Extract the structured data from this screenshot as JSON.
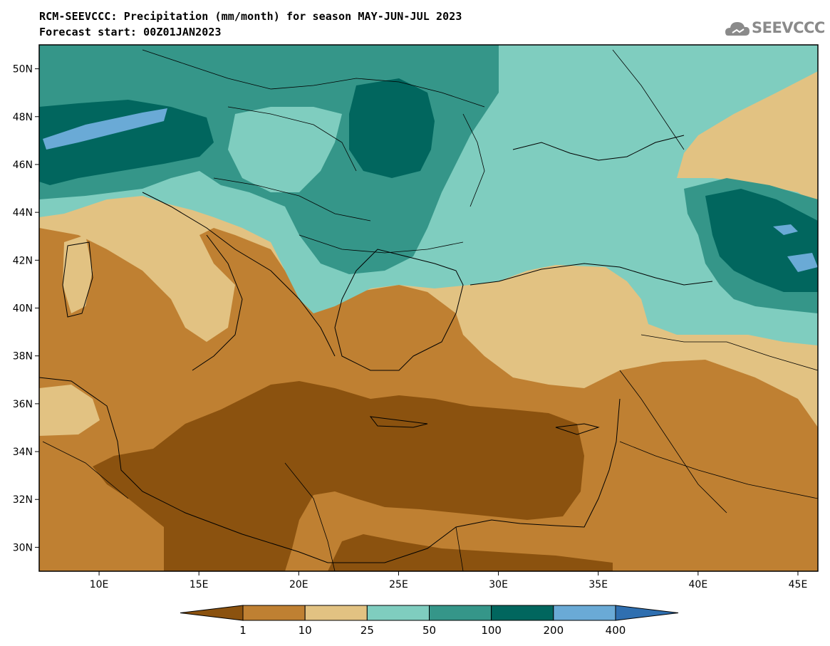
{
  "title": "RCM-SEEVCCC: Precipitation (mm/month) for season MAY-JUN-JUL 2023",
  "subtitle": "Forecast start: 00Z01JAN2023",
  "logo_text": "SEEVCCC",
  "map": {
    "type": "filled-contour precipitation map",
    "lon_range": [
      7,
      46
    ],
    "lat_range": [
      29,
      51
    ],
    "lat_ticks": [
      {
        "value": 50,
        "label": "50N"
      },
      {
        "value": 48,
        "label": "48N"
      },
      {
        "value": 46,
        "label": "46N"
      },
      {
        "value": 44,
        "label": "44N"
      },
      {
        "value": 42,
        "label": "42N"
      },
      {
        "value": 40,
        "label": "40N"
      },
      {
        "value": 38,
        "label": "38N"
      },
      {
        "value": 36,
        "label": "36N"
      },
      {
        "value": 34,
        "label": "34N"
      },
      {
        "value": 32,
        "label": "32N"
      },
      {
        "value": 30,
        "label": "30N"
      }
    ],
    "lon_ticks": [
      {
        "value": 10,
        "label": "10E"
      },
      {
        "value": 15,
        "label": "15E"
      },
      {
        "value": 20,
        "label": "20E"
      },
      {
        "value": 25,
        "label": "25E"
      },
      {
        "value": 30,
        "label": "30E"
      },
      {
        "value": 35,
        "label": "35E"
      },
      {
        "value": 40,
        "label": "40E"
      },
      {
        "value": 45,
        "label": "45E"
      }
    ]
  },
  "colorbar": {
    "thresholds": [
      "1",
      "10",
      "25",
      "50",
      "100",
      "200",
      "400"
    ],
    "colors": [
      "#8b520f",
      "#bf8032",
      "#e2c282",
      "#7fcdbf",
      "#359689",
      "#01665e",
      "#6aaad6",
      "#2f6fb0"
    ]
  },
  "colors": {
    "lt1": "#8b520f",
    "c1_10": "#bf8032",
    "c10_25": "#e2c282",
    "c25_50": "#7fcdbf",
    "c50_100": "#359689",
    "c100_200": "#01665e",
    "c200_400": "#6aaad6",
    "gt400": "#2f6fb0"
  }
}
